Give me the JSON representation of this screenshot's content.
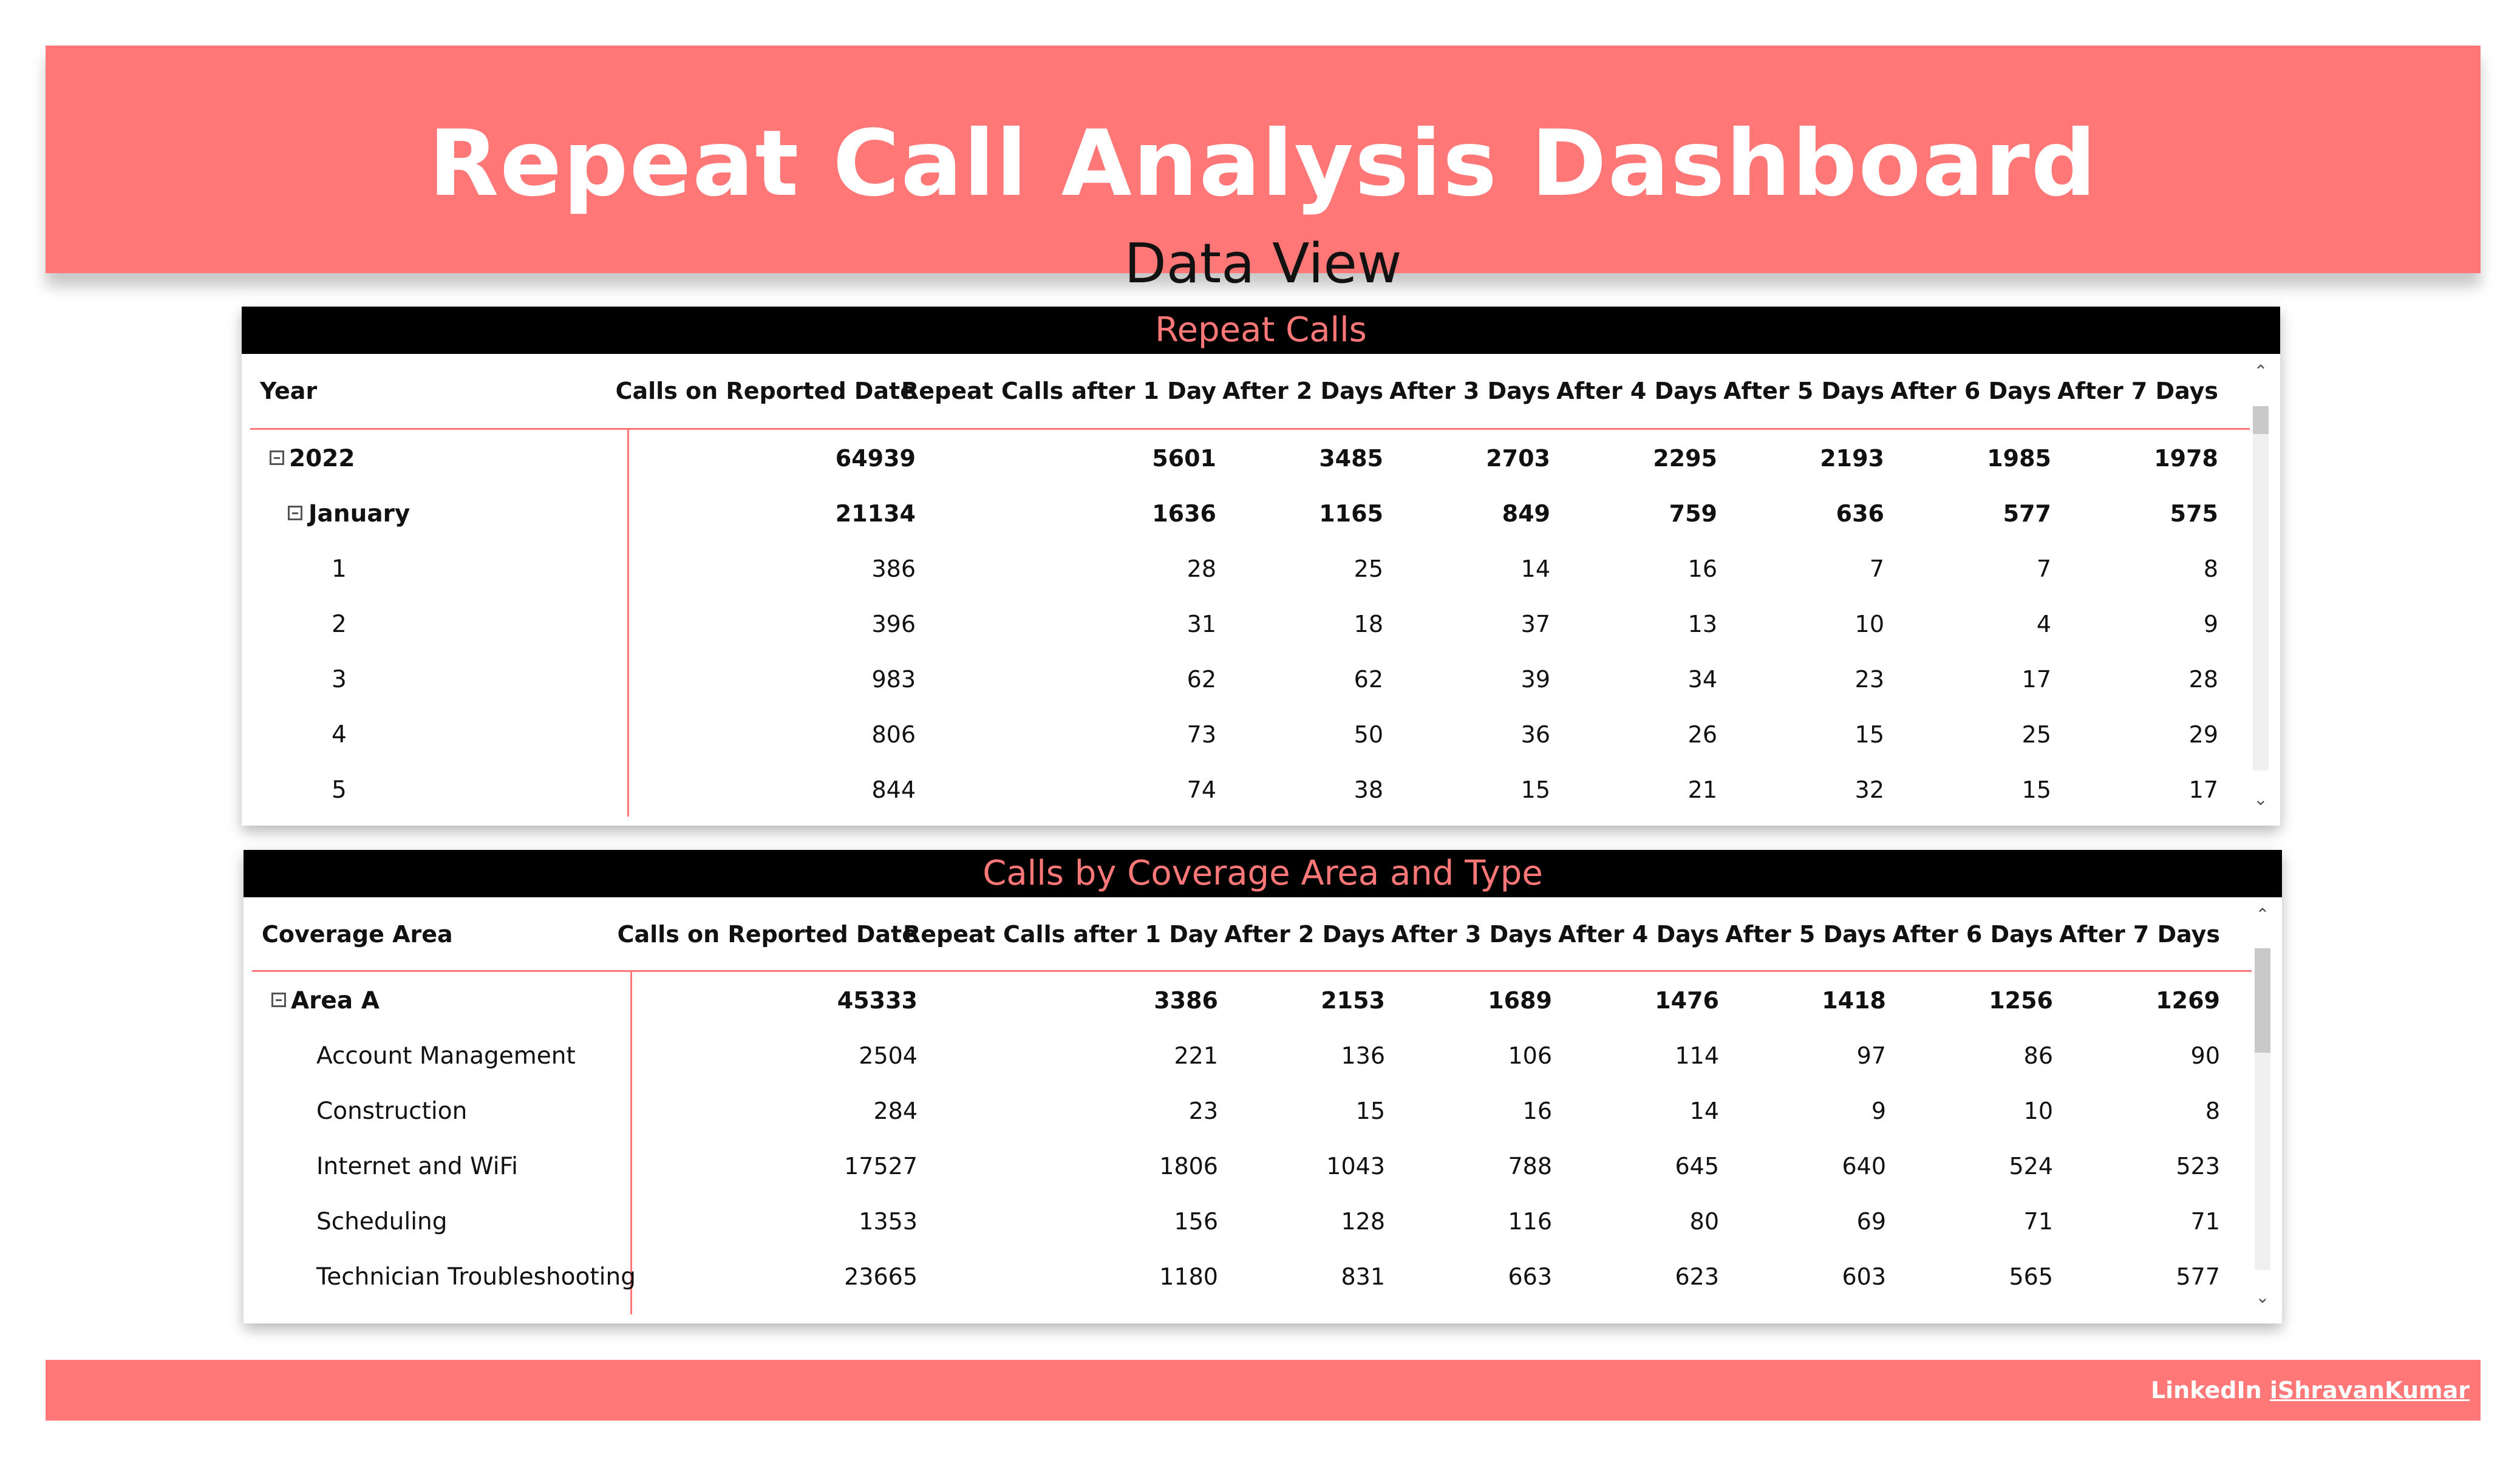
{
  "header": {
    "title": "Repeat Call Analysis Dashboard",
    "subtitle": "Data View"
  },
  "colors": {
    "accent": "#ff7777",
    "panel_title_bg": "#000000",
    "panel_title_text": "#ff7777"
  },
  "repeat_calls": {
    "title": "Repeat Calls",
    "columns": [
      "Year",
      "Calls on Reported Date",
      "Repeat Calls after 1 Day",
      "After 2 Days",
      "After 3 Days",
      "After 4 Days",
      "After 5 Days",
      "After 6 Days",
      "After 7 Days"
    ],
    "rows": [
      {
        "label": "2022",
        "level": 0,
        "expander": true,
        "bold": true,
        "values": [
          "64939",
          "5601",
          "3485",
          "2703",
          "2295",
          "2193",
          "1985",
          "1978"
        ]
      },
      {
        "label": "January",
        "level": 1,
        "expander": true,
        "bold": true,
        "values": [
          "21134",
          "1636",
          "1165",
          "849",
          "759",
          "636",
          "577",
          "575"
        ]
      },
      {
        "label": "1",
        "level": 2,
        "expander": false,
        "bold": false,
        "values": [
          "386",
          "28",
          "25",
          "14",
          "16",
          "7",
          "7",
          "8"
        ]
      },
      {
        "label": "2",
        "level": 2,
        "expander": false,
        "bold": false,
        "values": [
          "396",
          "31",
          "18",
          "37",
          "13",
          "10",
          "4",
          "9"
        ]
      },
      {
        "label": "3",
        "level": 2,
        "expander": false,
        "bold": false,
        "values": [
          "983",
          "62",
          "62",
          "39",
          "34",
          "23",
          "17",
          "28"
        ]
      },
      {
        "label": "4",
        "level": 2,
        "expander": false,
        "bold": false,
        "values": [
          "806",
          "73",
          "50",
          "36",
          "26",
          "15",
          "25",
          "29"
        ]
      },
      {
        "label": "5",
        "level": 2,
        "expander": false,
        "bold": false,
        "values": [
          "844",
          "74",
          "38",
          "15",
          "21",
          "32",
          "15",
          "17"
        ]
      }
    ]
  },
  "coverage": {
    "title": "Calls by Coverage Area and Type",
    "columns": [
      "Coverage Area",
      "Calls on Reported Date",
      "Repeat Calls after 1 Day",
      "After 2 Days",
      "After 3 Days",
      "After 4 Days",
      "After 5 Days",
      "After 6 Days",
      "After 7 Days"
    ],
    "rows": [
      {
        "label": "Area A",
        "level": 0,
        "expander": true,
        "bold": true,
        "values": [
          "45333",
          "3386",
          "2153",
          "1689",
          "1476",
          "1418",
          "1256",
          "1269"
        ]
      },
      {
        "label": "Account Management",
        "level": 1,
        "expander": false,
        "bold": false,
        "values": [
          "2504",
          "221",
          "136",
          "106",
          "114",
          "97",
          "86",
          "90"
        ]
      },
      {
        "label": "Construction",
        "level": 1,
        "expander": false,
        "bold": false,
        "values": [
          "284",
          "23",
          "15",
          "16",
          "14",
          "9",
          "10",
          "8"
        ]
      },
      {
        "label": "Internet and WiFi",
        "level": 1,
        "expander": false,
        "bold": false,
        "values": [
          "17527",
          "1806",
          "1043",
          "788",
          "645",
          "640",
          "524",
          "523"
        ]
      },
      {
        "label": "Scheduling",
        "level": 1,
        "expander": false,
        "bold": false,
        "values": [
          "1353",
          "156",
          "128",
          "116",
          "80",
          "69",
          "71",
          "71"
        ]
      },
      {
        "label": "Technician Troubleshooting",
        "level": 1,
        "expander": false,
        "bold": false,
        "values": [
          "23665",
          "1180",
          "831",
          "663",
          "623",
          "603",
          "565",
          "577"
        ]
      }
    ]
  },
  "footer": {
    "prefix": "LinkedIn",
    "handle": "iShravanKumar"
  }
}
